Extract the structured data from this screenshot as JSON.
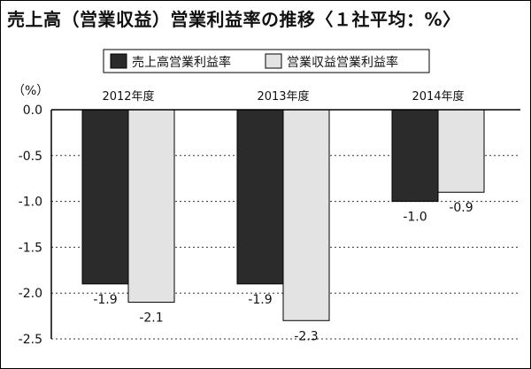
{
  "title": "売上高（営業収益）営業利益率の推移〈１社平均：%〉",
  "chart_data": {
    "type": "bar",
    "title": "売上高（営業収益）営業利益率の推移〈１社平均：%〉",
    "unit_label": "（%）",
    "categories": [
      "2012年度",
      "2013年度",
      "2014年度"
    ],
    "series": [
      {
        "name": "売上高営業利益率",
        "values": [
          -1.9,
          -1.9,
          -1.0
        ],
        "labels": [
          "-1.9",
          "-1.9",
          "-1.0"
        ],
        "color": "#2b2b2b"
      },
      {
        "name": "営業収益営業利益率",
        "values": [
          -2.1,
          -2.3,
          -0.9
        ],
        "labels": [
          "-2.1",
          "-2.3",
          "-0.9"
        ],
        "color": "#e3e3e3"
      }
    ],
    "yticks": [
      "0.0",
      "-0.5",
      "-1.0",
      "-1.5",
      "-2.0",
      "-2.5"
    ],
    "ylim": [
      -2.5,
      0
    ],
    "grid": true,
    "legend_position": "top"
  }
}
